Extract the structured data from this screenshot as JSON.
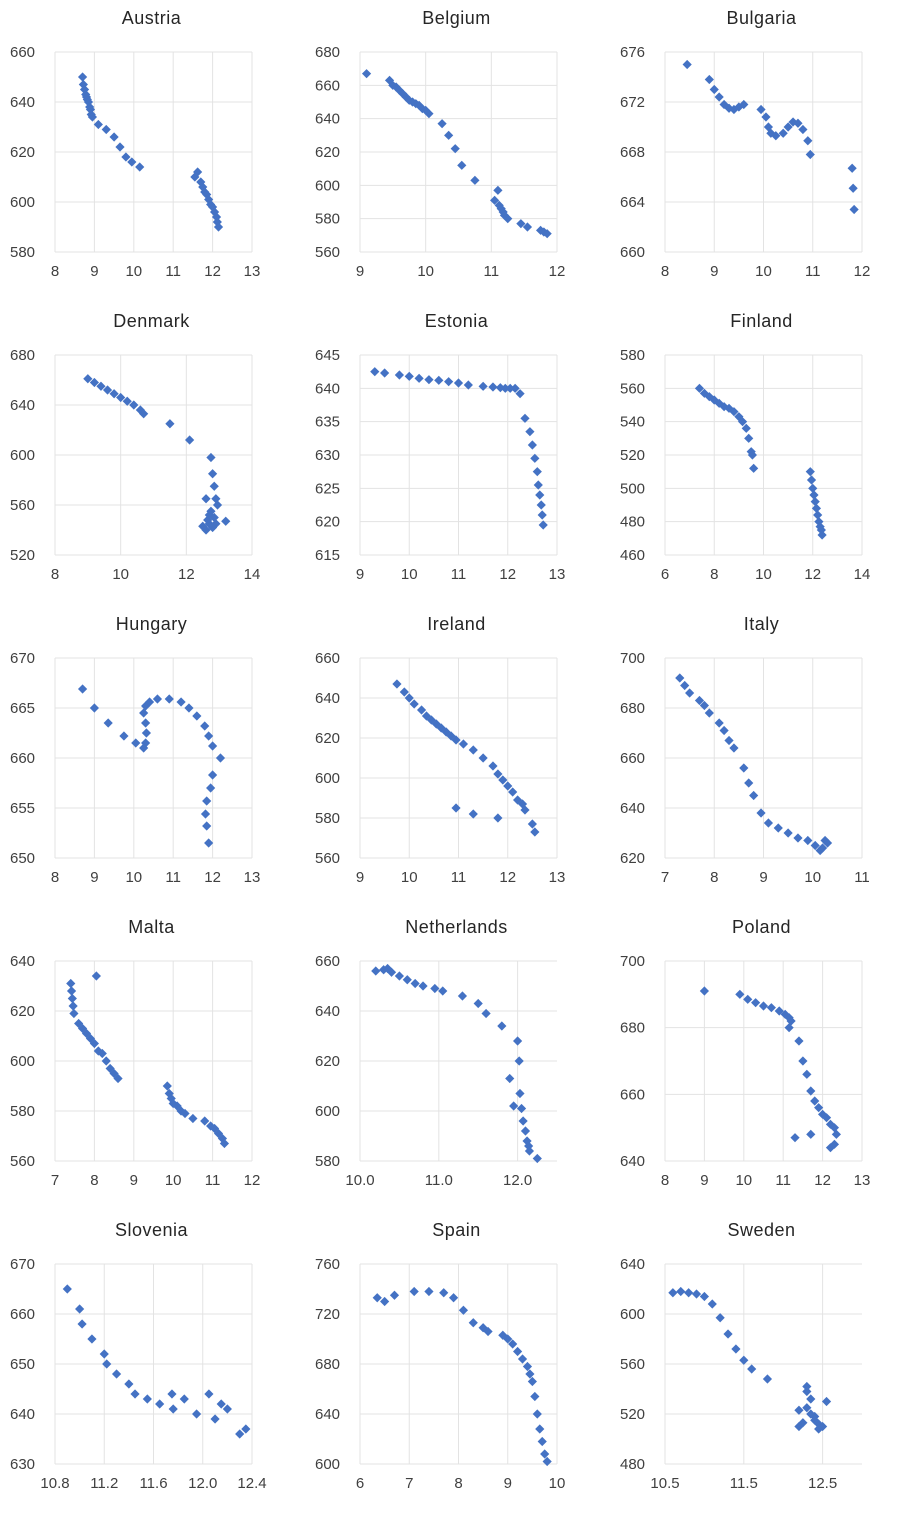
{
  "chart_data": [
    {
      "type": "scatter",
      "title": "Austria",
      "xlim": [
        8,
        13
      ],
      "ylim": [
        580,
        660
      ],
      "xticks": [
        "8",
        "9",
        "10",
        "11",
        "12",
        "13"
      ],
      "yticks": [
        "660",
        "640",
        "620",
        "600",
        "580"
      ],
      "x": [
        8.7,
        8.72,
        8.75,
        8.78,
        8.8,
        8.82,
        8.85,
        8.88,
        8.9,
        8.92,
        8.95,
        9.1,
        9.3,
        9.5,
        9.65,
        9.8,
        9.95,
        10.15,
        11.55,
        11.62,
        11.7,
        11.75,
        11.8,
        11.85,
        11.9,
        11.95,
        12.0,
        12.05,
        12.1,
        12.12,
        12.15
      ],
      "y": [
        650,
        647,
        645,
        643,
        642,
        641,
        640,
        638,
        637,
        635,
        634,
        631,
        629,
        626,
        622,
        618,
        616,
        614,
        610,
        612,
        608,
        606,
        604,
        603,
        601,
        599,
        598,
        596,
        594,
        592,
        590
      ]
    },
    {
      "type": "scatter",
      "title": "Belgium",
      "xlim": [
        9,
        12
      ],
      "ylim": [
        560,
        680
      ],
      "xticks": [
        "9",
        "10",
        "11",
        "12"
      ],
      "yticks": [
        "680",
        "660",
        "640",
        "620",
        "600",
        "580",
        "560"
      ],
      "x": [
        9.1,
        9.45,
        9.5,
        9.55,
        9.6,
        9.65,
        9.7,
        9.75,
        9.8,
        9.85,
        9.9,
        9.95,
        10.0,
        10.05,
        10.25,
        10.35,
        10.45,
        10.55,
        10.75,
        11.05,
        11.1,
        11.12,
        11.15,
        11.18,
        11.2,
        11.25,
        11.45,
        11.55,
        11.75,
        11.8,
        11.85
      ],
      "y": [
        667,
        663,
        660,
        659,
        657,
        655,
        653,
        651,
        650,
        649,
        648,
        646,
        645,
        643,
        637,
        630,
        622,
        612,
        603,
        591,
        597,
        588,
        586,
        584,
        582,
        580,
        577,
        575,
        573,
        572,
        571
      ]
    },
    {
      "type": "scatter",
      "title": "Bulgaria",
      "xlim": [
        8,
        12
      ],
      "ylim": [
        660,
        676
      ],
      "xticks": [
        "8",
        "9",
        "10",
        "11",
        "12"
      ],
      "yticks": [
        "676",
        "672",
        "668",
        "664",
        "660"
      ],
      "x": [
        8.45,
        8.9,
        9.0,
        9.1,
        9.2,
        9.3,
        9.4,
        9.5,
        9.6,
        9.95,
        10.05,
        10.1,
        10.15,
        10.25,
        10.4,
        10.5,
        10.6,
        10.7,
        10.8,
        10.9,
        10.95,
        11.8,
        11.82,
        11.84
      ],
      "y": [
        675,
        673.8,
        673,
        672.4,
        671.8,
        671.5,
        671.4,
        671.6,
        671.8,
        671.4,
        670.8,
        670,
        669.5,
        669.3,
        669.5,
        670,
        670.4,
        670.3,
        669.8,
        668.9,
        667.8,
        666.7,
        665.1,
        663.4
      ]
    },
    {
      "type": "scatter",
      "title": "Denmark",
      "xlim": [
        8,
        14
      ],
      "ylim": [
        520,
        680
      ],
      "xticks": [
        "8",
        "10",
        "12",
        "14"
      ],
      "yticks": [
        "680",
        "640",
        "600",
        "560",
        "520"
      ],
      "x": [
        9.0,
        9.2,
        9.4,
        9.6,
        9.8,
        10.0,
        10.2,
        10.4,
        10.6,
        10.7,
        11.5,
        12.1,
        12.5,
        12.6,
        12.7,
        12.75,
        12.8,
        12.85,
        12.9,
        12.95,
        12.75,
        12.7,
        12.65,
        12.8,
        12.85,
        12.9,
        13.2,
        12.6
      ],
      "y": [
        661,
        658,
        655,
        652,
        649,
        646,
        643,
        640,
        636,
        633,
        625,
        612,
        543,
        540,
        545,
        598,
        585,
        575,
        565,
        560,
        555,
        552,
        548,
        542,
        550,
        545,
        547,
        565
      ]
    },
    {
      "type": "scatter",
      "title": "Estonia",
      "xlim": [
        9,
        13
      ],
      "ylim": [
        615,
        645
      ],
      "xticks": [
        "9",
        "10",
        "11",
        "12",
        "13"
      ],
      "yticks": [
        "645",
        "640",
        "635",
        "630",
        "625",
        "620",
        "615"
      ],
      "x": [
        9.3,
        9.5,
        9.8,
        10.0,
        10.2,
        10.4,
        10.6,
        10.8,
        11.0,
        11.2,
        11.5,
        11.7,
        11.85,
        11.95,
        12.05,
        12.15,
        12.25,
        12.35,
        12.45,
        12.5,
        12.55,
        12.6,
        12.62,
        12.65,
        12.68,
        12.7,
        12.72
      ],
      "y": [
        642.5,
        642.3,
        642,
        641.8,
        641.5,
        641.3,
        641.2,
        641,
        640.8,
        640.5,
        640.3,
        640.2,
        640.1,
        640,
        640,
        640,
        639.2,
        635.5,
        633.5,
        631.5,
        629.5,
        627.5,
        625.5,
        624,
        622.5,
        621,
        619.5
      ]
    },
    {
      "type": "scatter",
      "title": "Finland",
      "xlim": [
        6,
        14
      ],
      "ylim": [
        460,
        580
      ],
      "xticks": [
        "6",
        "8",
        "10",
        "12",
        "14"
      ],
      "yticks": [
        "580",
        "560",
        "540",
        "520",
        "500",
        "480",
        "460"
      ],
      "x": [
        7.4,
        7.6,
        7.8,
        8.0,
        8.2,
        8.4,
        8.6,
        8.8,
        9.0,
        9.15,
        9.3,
        9.4,
        9.5,
        9.55,
        9.6,
        11.9,
        11.95,
        12.0,
        12.05,
        12.1,
        12.15,
        12.2,
        12.25,
        12.3,
        12.35,
        12.38
      ],
      "y": [
        560,
        557,
        555,
        553,
        551,
        549,
        548,
        546,
        543,
        540,
        536,
        530,
        522,
        520,
        512,
        510,
        505,
        500,
        496,
        492,
        488,
        484,
        480,
        477,
        475,
        472
      ]
    },
    {
      "type": "scatter",
      "title": "Hungary",
      "xlim": [
        8,
        13
      ],
      "ylim": [
        650,
        670
      ],
      "xticks": [
        "8",
        "9",
        "10",
        "11",
        "12",
        "13"
      ],
      "yticks": [
        "670",
        "665",
        "660",
        "655",
        "650"
      ],
      "x": [
        8.7,
        9.0,
        9.35,
        9.75,
        10.05,
        10.25,
        10.3,
        10.32,
        10.3,
        10.25,
        10.3,
        10.4,
        10.6,
        10.9,
        11.2,
        11.4,
        11.6,
        11.8,
        11.9,
        12.0,
        12.2,
        12.0,
        11.95,
        11.85,
        11.82,
        11.85,
        11.9
      ],
      "y": [
        666.9,
        665,
        663.5,
        662.2,
        661.5,
        661,
        661.5,
        662.5,
        663.5,
        664.5,
        665.2,
        665.6,
        665.9,
        665.9,
        665.6,
        665,
        664.2,
        663.2,
        662.2,
        661.2,
        660,
        658.3,
        657,
        655.7,
        654.4,
        653.2,
        651.5
      ]
    },
    {
      "type": "scatter",
      "title": "Ireland",
      "xlim": [
        9,
        13
      ],
      "ylim": [
        560,
        660
      ],
      "xticks": [
        "9",
        "10",
        "11",
        "12",
        "13"
      ],
      "yticks": [
        "660",
        "640",
        "620",
        "600",
        "580",
        "560"
      ],
      "x": [
        9.75,
        9.9,
        10.0,
        10.1,
        10.25,
        10.35,
        10.45,
        10.55,
        10.65,
        10.75,
        10.85,
        10.95,
        11.1,
        11.3,
        11.5,
        11.7,
        11.8,
        11.9,
        12.0,
        12.1,
        12.2,
        12.3,
        12.35,
        12.5,
        12.55,
        10.95,
        11.3,
        11.8
      ],
      "y": [
        647,
        643,
        640,
        637,
        634,
        631,
        629,
        627,
        625,
        623,
        621,
        619,
        617,
        614,
        610,
        606,
        602,
        599,
        596,
        593,
        589,
        587,
        584,
        577,
        573,
        585,
        582,
        580
      ]
    },
    {
      "type": "scatter",
      "title": "Italy",
      "xlim": [
        7,
        11
      ],
      "ylim": [
        620,
        700
      ],
      "xticks": [
        "7",
        "8",
        "9",
        "10",
        "11"
      ],
      "yticks": [
        "700",
        "680",
        "660",
        "640",
        "620"
      ],
      "x": [
        7.3,
        7.4,
        7.5,
        7.7,
        7.8,
        7.9,
        8.1,
        8.2,
        8.3,
        8.4,
        8.6,
        8.7,
        8.8,
        8.95,
        9.1,
        9.3,
        9.5,
        9.7,
        9.9,
        10.05,
        10.15,
        10.2,
        10.25,
        10.3
      ],
      "y": [
        692,
        689,
        686,
        683,
        681,
        678,
        674,
        671,
        667,
        664,
        656,
        650,
        645,
        638,
        634,
        632,
        630,
        628,
        627,
        625,
        623,
        624,
        627,
        626
      ]
    },
    {
      "type": "scatter",
      "title": "Malta",
      "xlim": [
        7,
        12
      ],
      "ylim": [
        560,
        640
      ],
      "xticks": [
        "7",
        "8",
        "9",
        "10",
        "11",
        "12"
      ],
      "yticks": [
        "640",
        "620",
        "600",
        "580",
        "560"
      ],
      "x": [
        7.4,
        7.42,
        7.44,
        7.46,
        7.48,
        7.6,
        7.7,
        7.8,
        7.9,
        8.0,
        8.1,
        8.2,
        8.3,
        8.4,
        8.5,
        8.6,
        8.05,
        9.85,
        9.9,
        9.95,
        10.0,
        10.1,
        10.2,
        10.3,
        10.5,
        10.8,
        10.95,
        11.05,
        11.15,
        11.25,
        11.3
      ],
      "y": [
        631,
        628,
        625,
        622,
        619,
        615,
        613,
        611,
        609,
        607,
        604,
        603,
        600,
        597,
        595,
        593,
        634,
        590,
        587,
        585,
        583,
        582,
        580,
        579,
        577,
        576,
        574,
        573,
        571,
        569,
        567
      ]
    },
    {
      "type": "scatter",
      "title": "Netherlands",
      "xlim": [
        10.0,
        12.5
      ],
      "ylim": [
        580,
        660
      ],
      "xticks": [
        "10.0",
        "11.0",
        "12.0"
      ],
      "yticks": [
        "660",
        "640",
        "620",
        "600",
        "580"
      ],
      "x": [
        10.2,
        10.3,
        10.35,
        10.4,
        10.5,
        10.6,
        10.7,
        10.8,
        10.95,
        11.05,
        11.3,
        11.5,
        11.6,
        11.8,
        11.9,
        11.95,
        12.0,
        12.02,
        12.03,
        12.05,
        12.07,
        12.1,
        12.12,
        12.14,
        12.15,
        12.25
      ],
      "y": [
        656,
        656.5,
        657,
        655.5,
        654,
        652.5,
        651,
        650,
        649,
        648,
        646,
        643,
        639,
        634,
        613,
        602,
        628,
        620,
        607,
        601,
        596,
        592,
        588,
        586,
        584,
        581
      ]
    },
    {
      "type": "scatter",
      "title": "Poland",
      "xlim": [
        8,
        13
      ],
      "ylim": [
        640,
        700
      ],
      "xticks": [
        "8",
        "9",
        "10",
        "11",
        "12",
        "13"
      ],
      "yticks": [
        "700",
        "680",
        "660",
        "640"
      ],
      "x": [
        9.0,
        9.9,
        10.1,
        10.3,
        10.5,
        10.7,
        10.9,
        11.05,
        11.15,
        11.2,
        11.15,
        11.4,
        11.5,
        11.6,
        11.7,
        11.8,
        11.9,
        12.0,
        12.1,
        12.2,
        12.3,
        12.35,
        12.3,
        12.2,
        11.3,
        11.7
      ],
      "y": [
        691,
        690,
        688.5,
        687.5,
        686.5,
        686,
        685,
        684,
        683,
        682,
        680,
        676,
        670,
        666,
        661,
        658,
        656,
        654,
        653,
        651,
        650,
        648,
        645,
        644,
        647,
        648
      ]
    },
    {
      "type": "scatter",
      "title": "Slovenia",
      "xlim": [
        10.8,
        12.4
      ],
      "ylim": [
        630,
        670
      ],
      "xticks": [
        "10.8",
        "11.2",
        "11.6",
        "12.0",
        "12.4"
      ],
      "yticks": [
        "670",
        "660",
        "650",
        "640",
        "630"
      ],
      "x": [
        10.9,
        11.0,
        11.02,
        11.1,
        11.2,
        11.22,
        11.3,
        11.4,
        11.45,
        11.55,
        11.65,
        11.75,
        11.76,
        11.85,
        11.95,
        12.05,
        12.1,
        12.15,
        12.2,
        12.3,
        12.35
      ],
      "y": [
        665,
        661,
        658,
        655,
        652,
        650,
        648,
        646,
        644,
        643,
        642,
        644,
        641,
        643,
        640,
        644,
        639,
        642,
        641,
        636,
        637
      ]
    },
    {
      "type": "scatter",
      "title": "Spain",
      "xlim": [
        6,
        10
      ],
      "ylim": [
        600,
        760
      ],
      "xticks": [
        "6",
        "7",
        "8",
        "9",
        "10"
      ],
      "yticks": [
        "760",
        "720",
        "680",
        "640",
        "600"
      ],
      "x": [
        6.35,
        6.5,
        6.7,
        7.1,
        7.4,
        7.7,
        7.9,
        8.1,
        8.3,
        8.5,
        8.6,
        8.9,
        9.0,
        9.1,
        9.2,
        9.3,
        9.4,
        9.45,
        9.5,
        9.55,
        9.6,
        9.65,
        9.7,
        9.75,
        9.8
      ],
      "y": [
        733,
        730,
        735,
        738,
        738,
        737,
        733,
        723,
        713,
        709,
        706,
        703,
        700,
        696,
        690,
        684,
        678,
        672,
        666,
        654,
        640,
        628,
        618,
        608,
        602
      ]
    },
    {
      "type": "scatter",
      "title": "Sweden",
      "xlim": [
        10.5,
        13
      ],
      "ylim": [
        480,
        640
      ],
      "xticks": [
        "10.5",
        "11.5",
        "12.5"
      ],
      "yticks": [
        "640",
        "600",
        "560",
        "520",
        "480"
      ],
      "x": [
        10.6,
        10.7,
        10.8,
        10.9,
        11.0,
        11.1,
        11.2,
        11.3,
        11.4,
        11.5,
        11.6,
        11.8,
        12.2,
        12.3,
        12.35,
        12.4,
        12.45,
        12.5,
        12.3,
        12.35,
        12.4,
        12.45,
        12.2,
        12.25,
        12.55,
        12.3
      ],
      "y": [
        617,
        618,
        617,
        616,
        614,
        608,
        597,
        584,
        572,
        563,
        556,
        548,
        523,
        538,
        532,
        518,
        512,
        510,
        525,
        520,
        515,
        508,
        510,
        513,
        530,
        542
      ]
    }
  ]
}
